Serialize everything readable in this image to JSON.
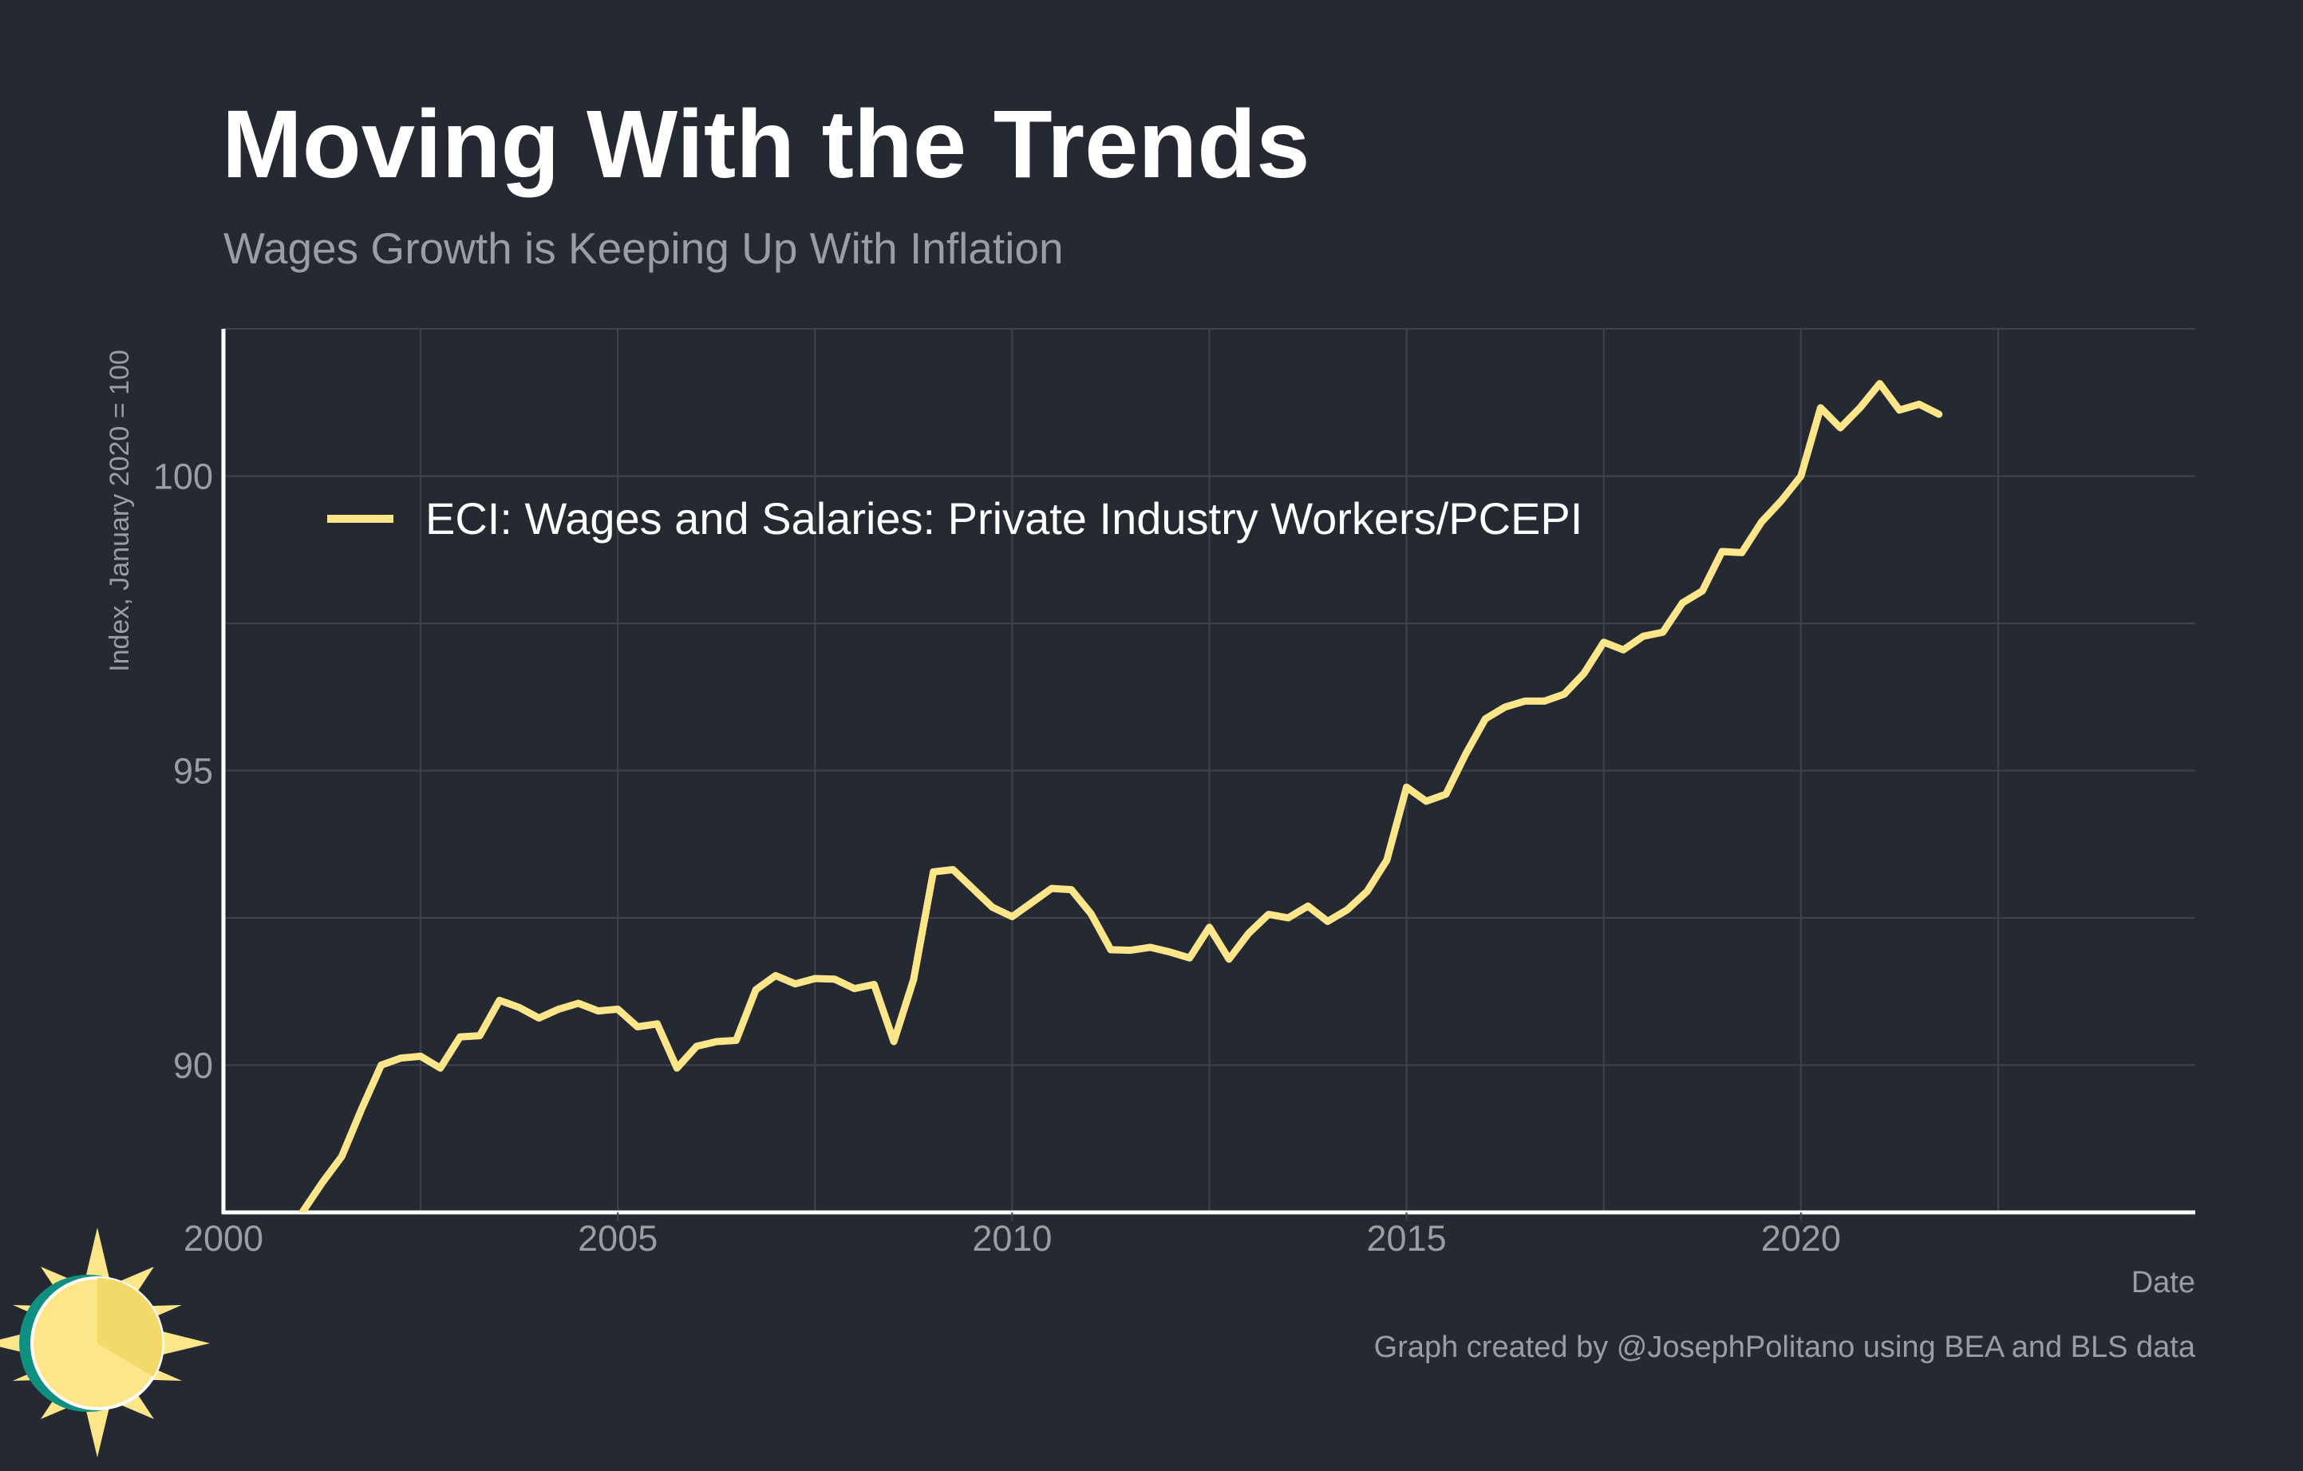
{
  "colors": {
    "background": "#252932",
    "line": "#fde68a",
    "grid": "#3e434e",
    "axis": "#ffffff",
    "text_muted": "#9a9da3",
    "logo_teal": "#0f8f80",
    "logo_sun": "#fde68a",
    "logo_sun_dark": "#f3d96a"
  },
  "logo": {
    "icon": "sun-icon"
  },
  "chart_data": {
    "type": "line",
    "title": "Moving With the Trends",
    "subtitle": "Wages Growth is Keeping Up With Inflation",
    "xlabel": "Date",
    "ylabel": "Index, January 2020 = 100",
    "caption": "Graph created by @JosephPolitano using BEA and BLS data",
    "xlim": [
      2000,
      2025
    ],
    "ylim": [
      87.5,
      102.5
    ],
    "xticks": [
      2000,
      2005,
      2010,
      2015,
      2020
    ],
    "xtick_labels": [
      "2000",
      "2005",
      "2010",
      "2015",
      "2020"
    ],
    "yticks": [
      90,
      95,
      100
    ],
    "ytick_labels": [
      "90",
      "95",
      "100"
    ],
    "grid": true,
    "legend_position": "top-left",
    "series": [
      {
        "name": "ECI: Wages and Salaries: Private Industry Workers/PCEPI",
        "x": [
          2001.0,
          2001.25,
          2001.5,
          2001.75,
          2002.0,
          2002.25,
          2002.5,
          2002.75,
          2003.0,
          2003.25,
          2003.5,
          2003.75,
          2004.0,
          2004.25,
          2004.5,
          2004.75,
          2005.0,
          2005.25,
          2005.5,
          2005.75,
          2006.0,
          2006.25,
          2006.5,
          2006.75,
          2007.0,
          2007.25,
          2007.5,
          2007.75,
          2008.0,
          2008.25,
          2008.5,
          2008.75,
          2009.0,
          2009.25,
          2009.5,
          2009.75,
          2010.0,
          2010.25,
          2010.5,
          2010.75,
          2011.0,
          2011.25,
          2011.5,
          2011.75,
          2012.0,
          2012.25,
          2012.5,
          2012.75,
          2013.0,
          2013.25,
          2013.5,
          2013.75,
          2014.0,
          2014.25,
          2014.5,
          2014.75,
          2015.0,
          2015.25,
          2015.5,
          2015.75,
          2016.0,
          2016.25,
          2016.5,
          2016.75,
          2017.0,
          2017.25,
          2017.5,
          2017.75,
          2018.0,
          2018.25,
          2018.5,
          2018.75,
          2019.0,
          2019.25,
          2019.5,
          2019.75,
          2020.0,
          2020.25,
          2020.5,
          2020.75,
          2021.0,
          2021.25,
          2021.5,
          2021.75
        ],
        "values": [
          87.5,
          88.0,
          88.45,
          89.25,
          90.0,
          90.12,
          90.15,
          89.95,
          90.48,
          90.5,
          91.1,
          90.98,
          90.8,
          90.95,
          91.05,
          90.92,
          90.95,
          90.65,
          90.7,
          89.95,
          90.32,
          90.4,
          90.42,
          91.28,
          91.52,
          91.38,
          91.47,
          91.46,
          91.3,
          91.37,
          90.4,
          91.45,
          93.28,
          93.32,
          93.0,
          92.68,
          92.52,
          92.76,
          93.0,
          92.98,
          92.57,
          91.96,
          91.95,
          92.0,
          91.92,
          91.82,
          92.34,
          91.8,
          92.24,
          92.56,
          92.5,
          92.7,
          92.44,
          92.64,
          92.95,
          93.48,
          94.72,
          94.48,
          94.6,
          95.28,
          95.88,
          96.08,
          96.18,
          96.18,
          96.3,
          96.65,
          97.18,
          97.05,
          97.28,
          97.35,
          97.85,
          98.05,
          98.72,
          98.7,
          99.22,
          99.58,
          100.0,
          101.16,
          100.82,
          101.16,
          101.57,
          101.12,
          101.22,
          101.05
        ]
      }
    ]
  }
}
